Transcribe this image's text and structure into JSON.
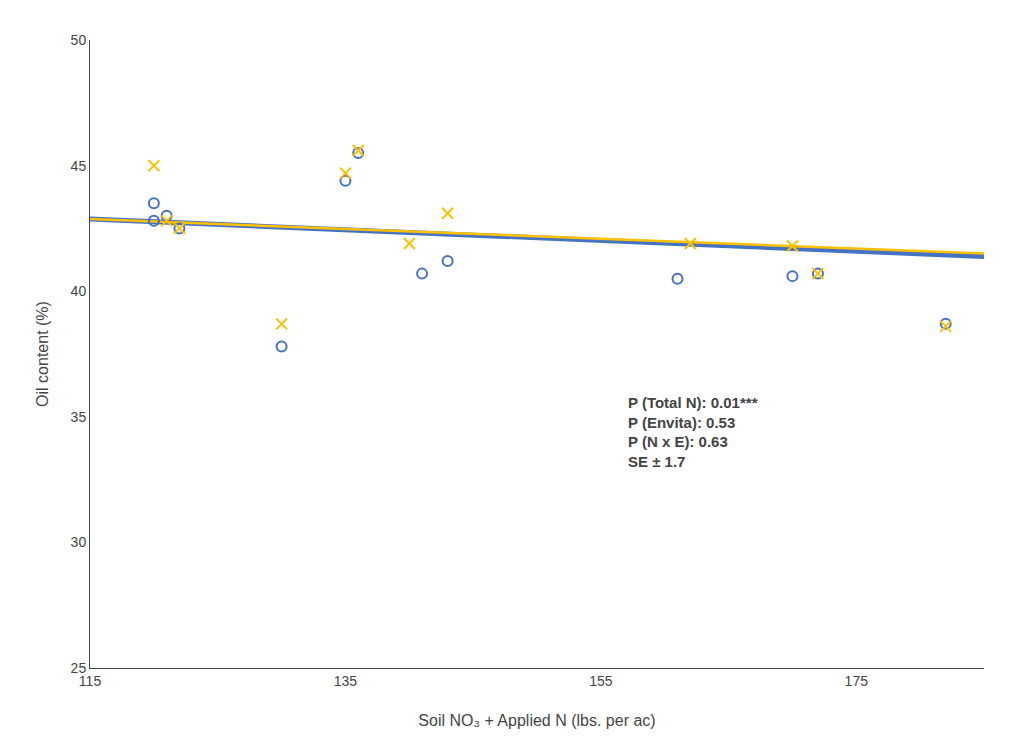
{
  "chart_data": {
    "type": "scatter",
    "xlabel": "Soil NO₃ + Applied N (lbs. per ac)",
    "ylabel": "Oil content (%)",
    "xlim": [
      115,
      185
    ],
    "ylim": [
      25,
      50
    ],
    "xticks": [
      115,
      135,
      155,
      175
    ],
    "yticks": [
      25,
      30,
      35,
      40,
      45,
      50
    ],
    "grid": false,
    "annotation": "P (Total N): 0.01***\nP (Envita): 0.53\nP (N x E): 0.63\nSE ± 1.7",
    "series": [
      {
        "type": "scatter",
        "marker": "circle_open",
        "color": "#4472C4",
        "x": [
          120,
          120,
          121,
          122,
          130,
          135,
          136,
          141,
          143,
          161,
          170,
          172,
          182
        ],
        "values": [
          42.8,
          43.5,
          43.0,
          42.5,
          37.8,
          44.4,
          45.5,
          40.7,
          41.2,
          40.5,
          40.6,
          40.7,
          38.7
        ]
      },
      {
        "type": "scatter",
        "marker": "x",
        "color": "#FFC000",
        "x": [
          120,
          121,
          122,
          130,
          135,
          136,
          140,
          143,
          162,
          170,
          172,
          182
        ],
        "values": [
          45.0,
          42.8,
          42.5,
          38.7,
          44.7,
          45.6,
          41.9,
          43.1,
          41.9,
          41.8,
          40.7,
          38.6
        ]
      },
      {
        "type": "line",
        "color": "#4472C4",
        "x": [
          115,
          185
        ],
        "values": [
          42.87,
          41.38
        ]
      },
      {
        "type": "line",
        "color": "#FFC000",
        "x": [
          115,
          185
        ],
        "values": [
          42.87,
          41.5
        ]
      }
    ]
  }
}
